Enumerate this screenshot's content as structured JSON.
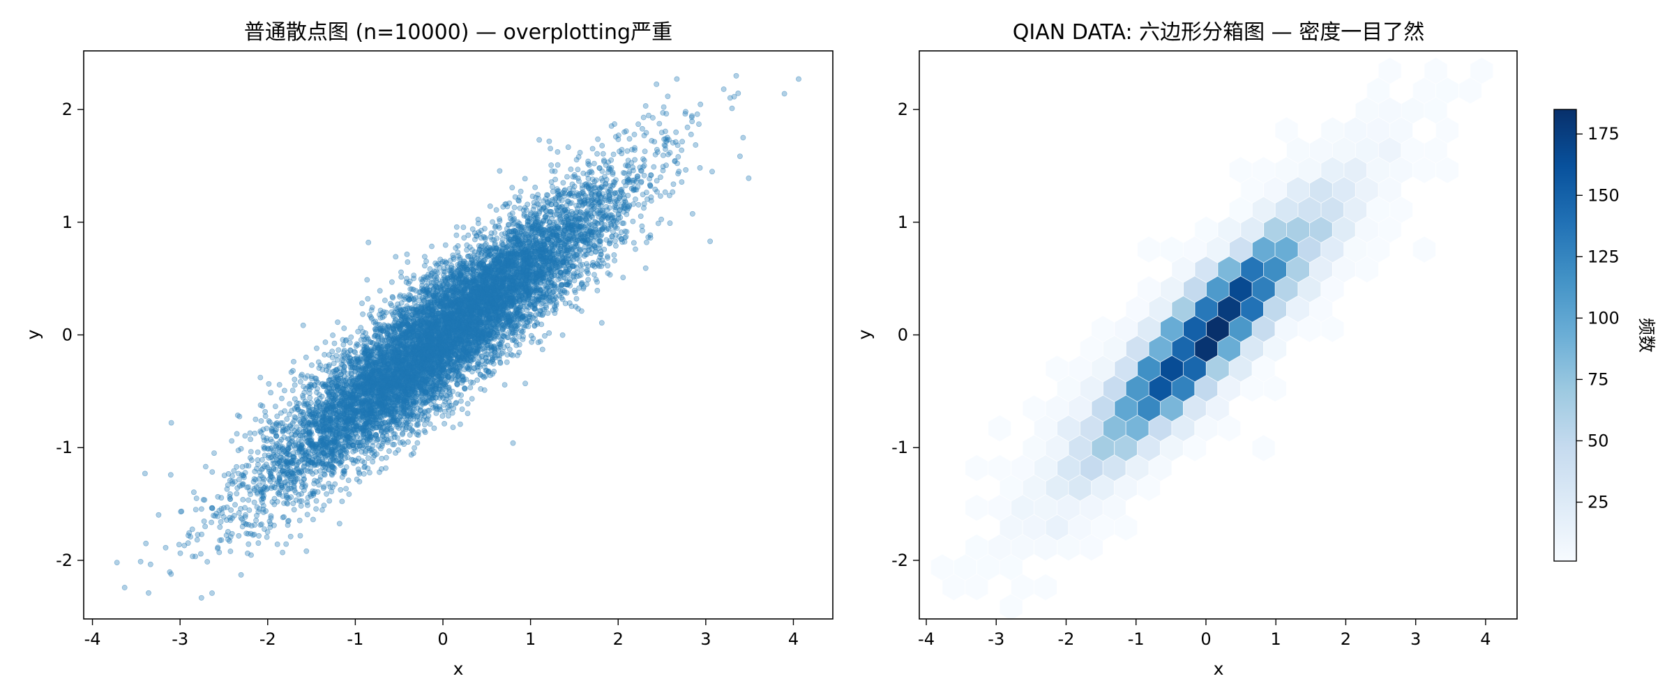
{
  "chart_data": [
    {
      "type": "scatter",
      "title": "普通散点图 (n=10000) — overplotting严重",
      "xlabel": "x",
      "ylabel": "y",
      "xlim": [
        -4.1,
        4.45
      ],
      "ylim": [
        -2.52,
        2.52
      ],
      "xticks": [
        -4,
        -3,
        -2,
        -1,
        0,
        1,
        2,
        3,
        4
      ],
      "xtick_labels": [
        "-4",
        "-3",
        "-2",
        "-1",
        "0",
        "1",
        "2",
        "3",
        "4"
      ],
      "yticks": [
        -2,
        -1,
        0,
        1,
        2
      ],
      "ytick_labels": [
        "-2",
        "-1",
        "0",
        "1",
        "2"
      ],
      "n_points": 10000,
      "point_color": "#1f77b4",
      "point_alpha": 0.35,
      "distribution": {
        "mean_x": 0,
        "mean_y": 0,
        "sd_x": 1.0,
        "slope_y_on_x": 0.6,
        "residual_sd": 0.28
      },
      "outlier_points": [
        {
          "x": 4.06,
          "y": 2.27
        },
        {
          "x": 2.67,
          "y": 2.27
        },
        {
          "x": -3.72,
          "y": -2.02
        },
        {
          "x": -3.36,
          "y": -2.29
        },
        {
          "x": 3.49,
          "y": 1.39
        },
        {
          "x": 3.3,
          "y": 2.01
        },
        {
          "x": -3.4,
          "y": -1.23
        },
        {
          "x": -3.1,
          "y": -0.78
        },
        {
          "x": 0.8,
          "y": -0.96
        },
        {
          "x": -0.85,
          "y": 0.82
        },
        {
          "x": 3.05,
          "y": 0.83
        },
        {
          "x": -1.83,
          "y": -1.93
        }
      ],
      "grid": false
    },
    {
      "type": "heatmap",
      "title": "QIAN DATA: 六边形分箱图 — 密度一目了然",
      "xlabel": "x",
      "ylabel": "y",
      "xlim": [
        -4.1,
        4.45
      ],
      "ylim": [
        -2.52,
        2.52
      ],
      "xticks": [
        -4,
        -3,
        -2,
        -1,
        0,
        1,
        2,
        3,
        4
      ],
      "xtick_labels": [
        "-4",
        "-3",
        "-2",
        "-1",
        "0",
        "1",
        "2",
        "3",
        "4"
      ],
      "yticks": [
        -2,
        -1,
        0,
        1,
        2
      ],
      "ytick_labels": [
        "-2",
        "-1",
        "0",
        "1",
        "2"
      ],
      "bin_type": "hexbin",
      "colormap": "Blues",
      "cmap_min_color": "#f7fbff",
      "cmap_max_color": "#08306b",
      "count_range": [
        1,
        185
      ],
      "peak_location": {
        "x": 0.1,
        "y": 0.1
      },
      "colorbar": {
        "label": "频数",
        "ticks": [
          25,
          50,
          75,
          100,
          125,
          150,
          175
        ],
        "tick_labels": [
          "25",
          "50",
          "75",
          "100",
          "125",
          "150",
          "175"
        ],
        "range": [
          1,
          185
        ]
      },
      "grid": false
    }
  ]
}
